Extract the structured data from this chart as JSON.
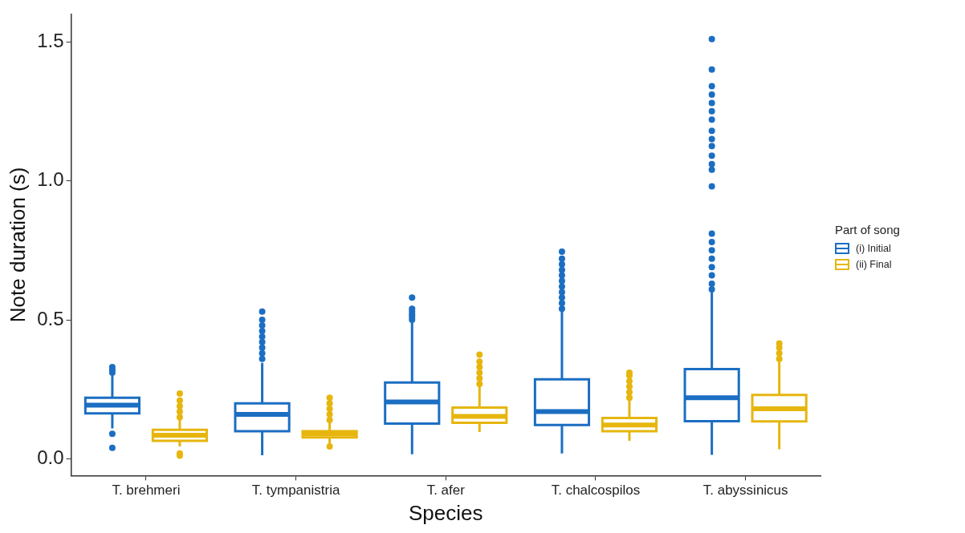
{
  "chart_data": {
    "type": "box",
    "xlabel": "Species",
    "ylabel": "Note duration (s)",
    "legend_title": "Part of song",
    "legend": "right",
    "grid": false,
    "categories": [
      "T. brehmeri",
      "T. tympanistria",
      "T. afer",
      "T. chalcospilos",
      "T. abyssinicus"
    ],
    "ylim": [
      -0.06,
      1.6
    ],
    "yticks": [
      {
        "value": 0,
        "label": "0.0"
      },
      {
        "value": 0.5,
        "label": "0.5"
      },
      {
        "value": 1,
        "label": "1.0"
      },
      {
        "value": 1.5,
        "label": "1.5"
      }
    ],
    "series": [
      {
        "name": "(i) Initial",
        "color": "#1b6ec2",
        "boxes": [
          {
            "low": 0.11,
            "q1": 0.164,
            "median": 0.193,
            "q3": 0.22,
            "high": 0.3,
            "outliers": [
              0.31,
              0.32,
              0.33,
              0.09,
              0.04
            ]
          },
          {
            "low": 0.013,
            "q1": 0.1,
            "median": 0.16,
            "q3": 0.2,
            "high": 0.345,
            "outliers": [
              0.36,
              0.38,
              0.4,
              0.42,
              0.44,
              0.46,
              0.48,
              0.5,
              0.53
            ]
          },
          {
            "low": 0.017,
            "q1": 0.127,
            "median": 0.205,
            "q3": 0.275,
            "high": 0.49,
            "outliers": [
              0.5,
              0.51,
              0.52,
              0.53,
              0.54,
              0.58
            ]
          },
          {
            "low": 0.02,
            "q1": 0.122,
            "median": 0.17,
            "q3": 0.286,
            "high": 0.53,
            "outliers": [
              0.54,
              0.56,
              0.58,
              0.6,
              0.62,
              0.64,
              0.66,
              0.68,
              0.7,
              0.72,
              0.745
            ]
          },
          {
            "low": 0.015,
            "q1": 0.136,
            "median": 0.22,
            "q3": 0.323,
            "high": 0.6,
            "outliers": [
              0.61,
              0.63,
              0.66,
              0.69,
              0.72,
              0.75,
              0.78,
              0.81,
              0.98,
              1.04,
              1.06,
              1.09,
              1.125,
              1.15,
              1.18,
              1.22,
              1.25,
              1.28,
              1.31,
              1.34,
              1.4,
              1.51
            ]
          }
        ]
      },
      {
        "name": "(ii) Final",
        "color": "#e6b60e",
        "boxes": [
          {
            "low": 0.045,
            "q1": 0.065,
            "median": 0.085,
            "q3": 0.105,
            "high": 0.14,
            "outliers": [
              0.15,
              0.17,
              0.19,
              0.21,
              0.235,
              0.012,
              0.02
            ]
          },
          {
            "low": 0.055,
            "q1": 0.077,
            "median": 0.09,
            "q3": 0.1,
            "high": 0.13,
            "outliers": [
              0.14,
              0.16,
              0.18,
              0.2,
              0.22,
              0.045
            ]
          },
          {
            "low": 0.097,
            "q1": 0.13,
            "median": 0.153,
            "q3": 0.185,
            "high": 0.26,
            "outliers": [
              0.27,
              0.29,
              0.31,
              0.33,
              0.35,
              0.375
            ]
          },
          {
            "low": 0.065,
            "q1": 0.1,
            "median": 0.122,
            "q3": 0.147,
            "high": 0.21,
            "outliers": [
              0.22,
              0.24,
              0.26,
              0.28,
              0.3,
              0.31
            ]
          },
          {
            "low": 0.035,
            "q1": 0.135,
            "median": 0.18,
            "q3": 0.23,
            "high": 0.35,
            "outliers": [
              0.36,
              0.38,
              0.4,
              0.415
            ]
          }
        ]
      }
    ]
  }
}
